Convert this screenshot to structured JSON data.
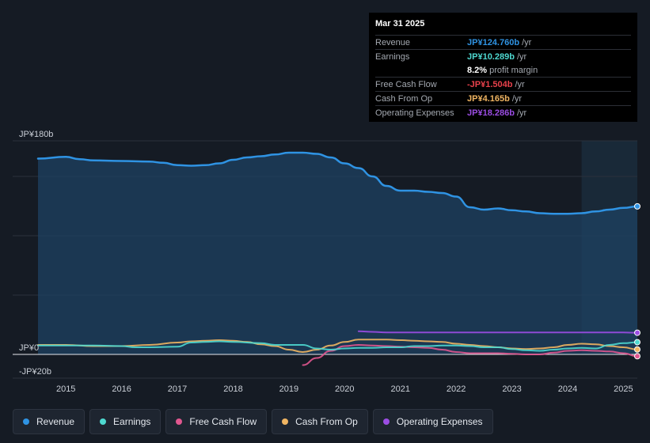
{
  "chart_data": {
    "type": "area",
    "y_unit": "JP¥ billions",
    "ylim": [
      -20,
      180
    ],
    "y_ticks": [
      {
        "label": "JP¥180b",
        "value": 180
      },
      {
        "label": "JP¥0",
        "value": 0
      },
      {
        "label": "-JP¥20b",
        "value": -20
      }
    ],
    "xlim": [
      2014.5,
      2025.25
    ],
    "forecast_shade_start": 2024.25,
    "x_ticks": [
      "2015",
      "2016",
      "2017",
      "2018",
      "2019",
      "2020",
      "2021",
      "2022",
      "2023",
      "2024",
      "2025"
    ],
    "x_tick_values": [
      2015,
      2016,
      2017,
      2018,
      2019,
      2020,
      2021,
      2022,
      2023,
      2024,
      2025
    ],
    "series": [
      {
        "name": "Revenue",
        "color": "#2f93e3",
        "filled": true,
        "points": [
          [
            2014.5,
            165
          ],
          [
            2015.0,
            166.5
          ],
          [
            2015.25,
            164.5
          ],
          [
            2015.5,
            163.5
          ],
          [
            2016.0,
            163
          ],
          [
            2016.5,
            162.5
          ],
          [
            2016.75,
            161.5
          ],
          [
            2017.0,
            159.5
          ],
          [
            2017.25,
            159
          ],
          [
            2017.5,
            159.5
          ],
          [
            2017.75,
            161
          ],
          [
            2018.0,
            164
          ],
          [
            2018.25,
            166
          ],
          [
            2018.5,
            167
          ],
          [
            2018.75,
            168.5
          ],
          [
            2019.0,
            170
          ],
          [
            2019.25,
            170
          ],
          [
            2019.5,
            169
          ],
          [
            2019.75,
            166
          ],
          [
            2020.0,
            161
          ],
          [
            2020.25,
            157
          ],
          [
            2020.5,
            150
          ],
          [
            2020.75,
            142
          ],
          [
            2021.0,
            138
          ],
          [
            2021.25,
            138
          ],
          [
            2021.5,
            137
          ],
          [
            2021.75,
            136
          ],
          [
            2022.0,
            133
          ],
          [
            2022.25,
            124
          ],
          [
            2022.5,
            122
          ],
          [
            2022.75,
            123
          ],
          [
            2023.0,
            121.5
          ],
          [
            2023.25,
            120.5
          ],
          [
            2023.5,
            119
          ],
          [
            2023.75,
            118.5
          ],
          [
            2024.0,
            118.5
          ],
          [
            2024.25,
            119
          ],
          [
            2024.5,
            120.5
          ],
          [
            2024.75,
            122
          ],
          [
            2025.0,
            123.5
          ],
          [
            2025.25,
            124.76
          ]
        ]
      },
      {
        "name": "Earnings",
        "color": "#4ed8d0",
        "filled": false,
        "points": [
          [
            2014.5,
            7.5
          ],
          [
            2015.0,
            7.5
          ],
          [
            2015.5,
            7.5
          ],
          [
            2016.0,
            7
          ],
          [
            2016.25,
            6
          ],
          [
            2016.5,
            6
          ],
          [
            2017.0,
            6.5
          ],
          [
            2017.25,
            10
          ],
          [
            2017.5,
            10.5
          ],
          [
            2017.75,
            11
          ],
          [
            2018.0,
            10.5
          ],
          [
            2018.5,
            9.5
          ],
          [
            2018.75,
            8
          ],
          [
            2019.0,
            8
          ],
          [
            2019.25,
            8
          ],
          [
            2019.5,
            5
          ],
          [
            2019.75,
            4
          ],
          [
            2020.0,
            5
          ],
          [
            2020.25,
            5.5
          ],
          [
            2020.5,
            5.5
          ],
          [
            2020.75,
            6
          ],
          [
            2021.0,
            6
          ],
          [
            2021.25,
            7
          ],
          [
            2021.5,
            7
          ],
          [
            2021.75,
            7.5
          ],
          [
            2022.0,
            7.5
          ],
          [
            2022.25,
            7
          ],
          [
            2022.5,
            6
          ],
          [
            2022.75,
            6
          ],
          [
            2023.0,
            4.5
          ],
          [
            2023.25,
            3.5
          ],
          [
            2023.5,
            3
          ],
          [
            2023.75,
            4
          ],
          [
            2024.0,
            5
          ],
          [
            2024.25,
            5.5
          ],
          [
            2024.5,
            5
          ],
          [
            2024.75,
            8
          ],
          [
            2025.0,
            9.5
          ],
          [
            2025.25,
            10.289
          ]
        ]
      },
      {
        "name": "Free Cash Flow",
        "color": "#e0578f",
        "filled": false,
        "points": [
          [
            2019.25,
            -9
          ],
          [
            2019.5,
            -3
          ],
          [
            2019.75,
            3
          ],
          [
            2020.0,
            7
          ],
          [
            2020.25,
            8
          ],
          [
            2020.5,
            7.5
          ],
          [
            2020.75,
            7
          ],
          [
            2021.0,
            6.5
          ],
          [
            2021.25,
            6
          ],
          [
            2021.5,
            5.5
          ],
          [
            2021.75,
            4
          ],
          [
            2022.0,
            2
          ],
          [
            2022.25,
            1
          ],
          [
            2022.5,
            1
          ],
          [
            2022.75,
            1
          ],
          [
            2023.0,
            0.5
          ],
          [
            2023.25,
            0
          ],
          [
            2023.5,
            0
          ],
          [
            2023.75,
            1.5
          ],
          [
            2024.0,
            3
          ],
          [
            2024.25,
            3.5
          ],
          [
            2024.5,
            3
          ],
          [
            2024.75,
            2.5
          ],
          [
            2025.0,
            1
          ],
          [
            2025.25,
            -1.504
          ]
        ]
      },
      {
        "name": "Cash From Op",
        "color": "#f0b562",
        "filled": false,
        "points": [
          [
            2014.5,
            8
          ],
          [
            2015.0,
            8
          ],
          [
            2015.5,
            7
          ],
          [
            2016.0,
            7
          ],
          [
            2016.5,
            8
          ],
          [
            2017.0,
            10
          ],
          [
            2017.25,
            11
          ],
          [
            2017.5,
            11.5
          ],
          [
            2017.75,
            12
          ],
          [
            2018.0,
            11.5
          ],
          [
            2018.25,
            10.5
          ],
          [
            2018.5,
            8.5
          ],
          [
            2018.75,
            7
          ],
          [
            2019.0,
            4
          ],
          [
            2019.25,
            2
          ],
          [
            2019.5,
            4
          ],
          [
            2019.75,
            7.5
          ],
          [
            2020.0,
            10.5
          ],
          [
            2020.25,
            12.5
          ],
          [
            2020.5,
            12.5
          ],
          [
            2020.75,
            12.5
          ],
          [
            2021.0,
            12
          ],
          [
            2021.25,
            11.5
          ],
          [
            2021.5,
            11
          ],
          [
            2021.75,
            10.5
          ],
          [
            2022.0,
            9
          ],
          [
            2022.25,
            8
          ],
          [
            2022.5,
            7
          ],
          [
            2022.75,
            6
          ],
          [
            2023.0,
            5
          ],
          [
            2023.25,
            4.5
          ],
          [
            2023.5,
            5
          ],
          [
            2023.75,
            6
          ],
          [
            2024.0,
            8
          ],
          [
            2024.25,
            9
          ],
          [
            2024.5,
            8.5
          ],
          [
            2024.75,
            7
          ],
          [
            2025.0,
            6
          ],
          [
            2025.25,
            4.165
          ]
        ]
      },
      {
        "name": "Operating Expenses",
        "color": "#9b4de3",
        "filled": false,
        "points": [
          [
            2020.25,
            19.5
          ],
          [
            2020.5,
            19
          ],
          [
            2020.75,
            18.5
          ],
          [
            2021.0,
            18.5
          ],
          [
            2021.25,
            18.5
          ],
          [
            2021.5,
            18.5
          ],
          [
            2021.75,
            18.5
          ],
          [
            2022.0,
            18.5
          ],
          [
            2022.25,
            18.5
          ],
          [
            2022.5,
            18.5
          ],
          [
            2022.75,
            18.5
          ],
          [
            2023.0,
            18.5
          ],
          [
            2023.25,
            18.5
          ],
          [
            2023.5,
            18.5
          ],
          [
            2023.75,
            18.5
          ],
          [
            2024.0,
            18.5
          ],
          [
            2024.25,
            18.5
          ],
          [
            2024.5,
            18.5
          ],
          [
            2024.75,
            18.5
          ],
          [
            2025.0,
            18.5
          ],
          [
            2025.25,
            18.286
          ]
        ]
      }
    ]
  },
  "tooltip": {
    "date": "Mar 31 2025",
    "rows": [
      {
        "label": "Revenue",
        "value": "JP¥124.760b",
        "unit": "/yr",
        "color": "#2f93e3"
      },
      {
        "label": "Earnings",
        "value": "JP¥10.289b",
        "unit": "/yr",
        "color": "#4ed8d0"
      },
      {
        "label": "",
        "value": "8.2%",
        "unit": "profit margin",
        "color": "#ffffff"
      },
      {
        "label": "Free Cash Flow",
        "value": "-JP¥1.504b",
        "unit": "/yr",
        "color": "#e8414b"
      },
      {
        "label": "Cash From Op",
        "value": "JP¥4.165b",
        "unit": "/yr",
        "color": "#f0b562"
      },
      {
        "label": "Operating Expenses",
        "value": "JP¥18.286b",
        "unit": "/yr",
        "color": "#9b4de3"
      }
    ]
  },
  "legend": [
    {
      "label": "Revenue",
      "color": "#2f93e3"
    },
    {
      "label": "Earnings",
      "color": "#4ed8d0"
    },
    {
      "label": "Free Cash Flow",
      "color": "#e0578f"
    },
    {
      "label": "Cash From Op",
      "color": "#f0b562"
    },
    {
      "label": "Operating Expenses",
      "color": "#9b4de3"
    }
  ]
}
